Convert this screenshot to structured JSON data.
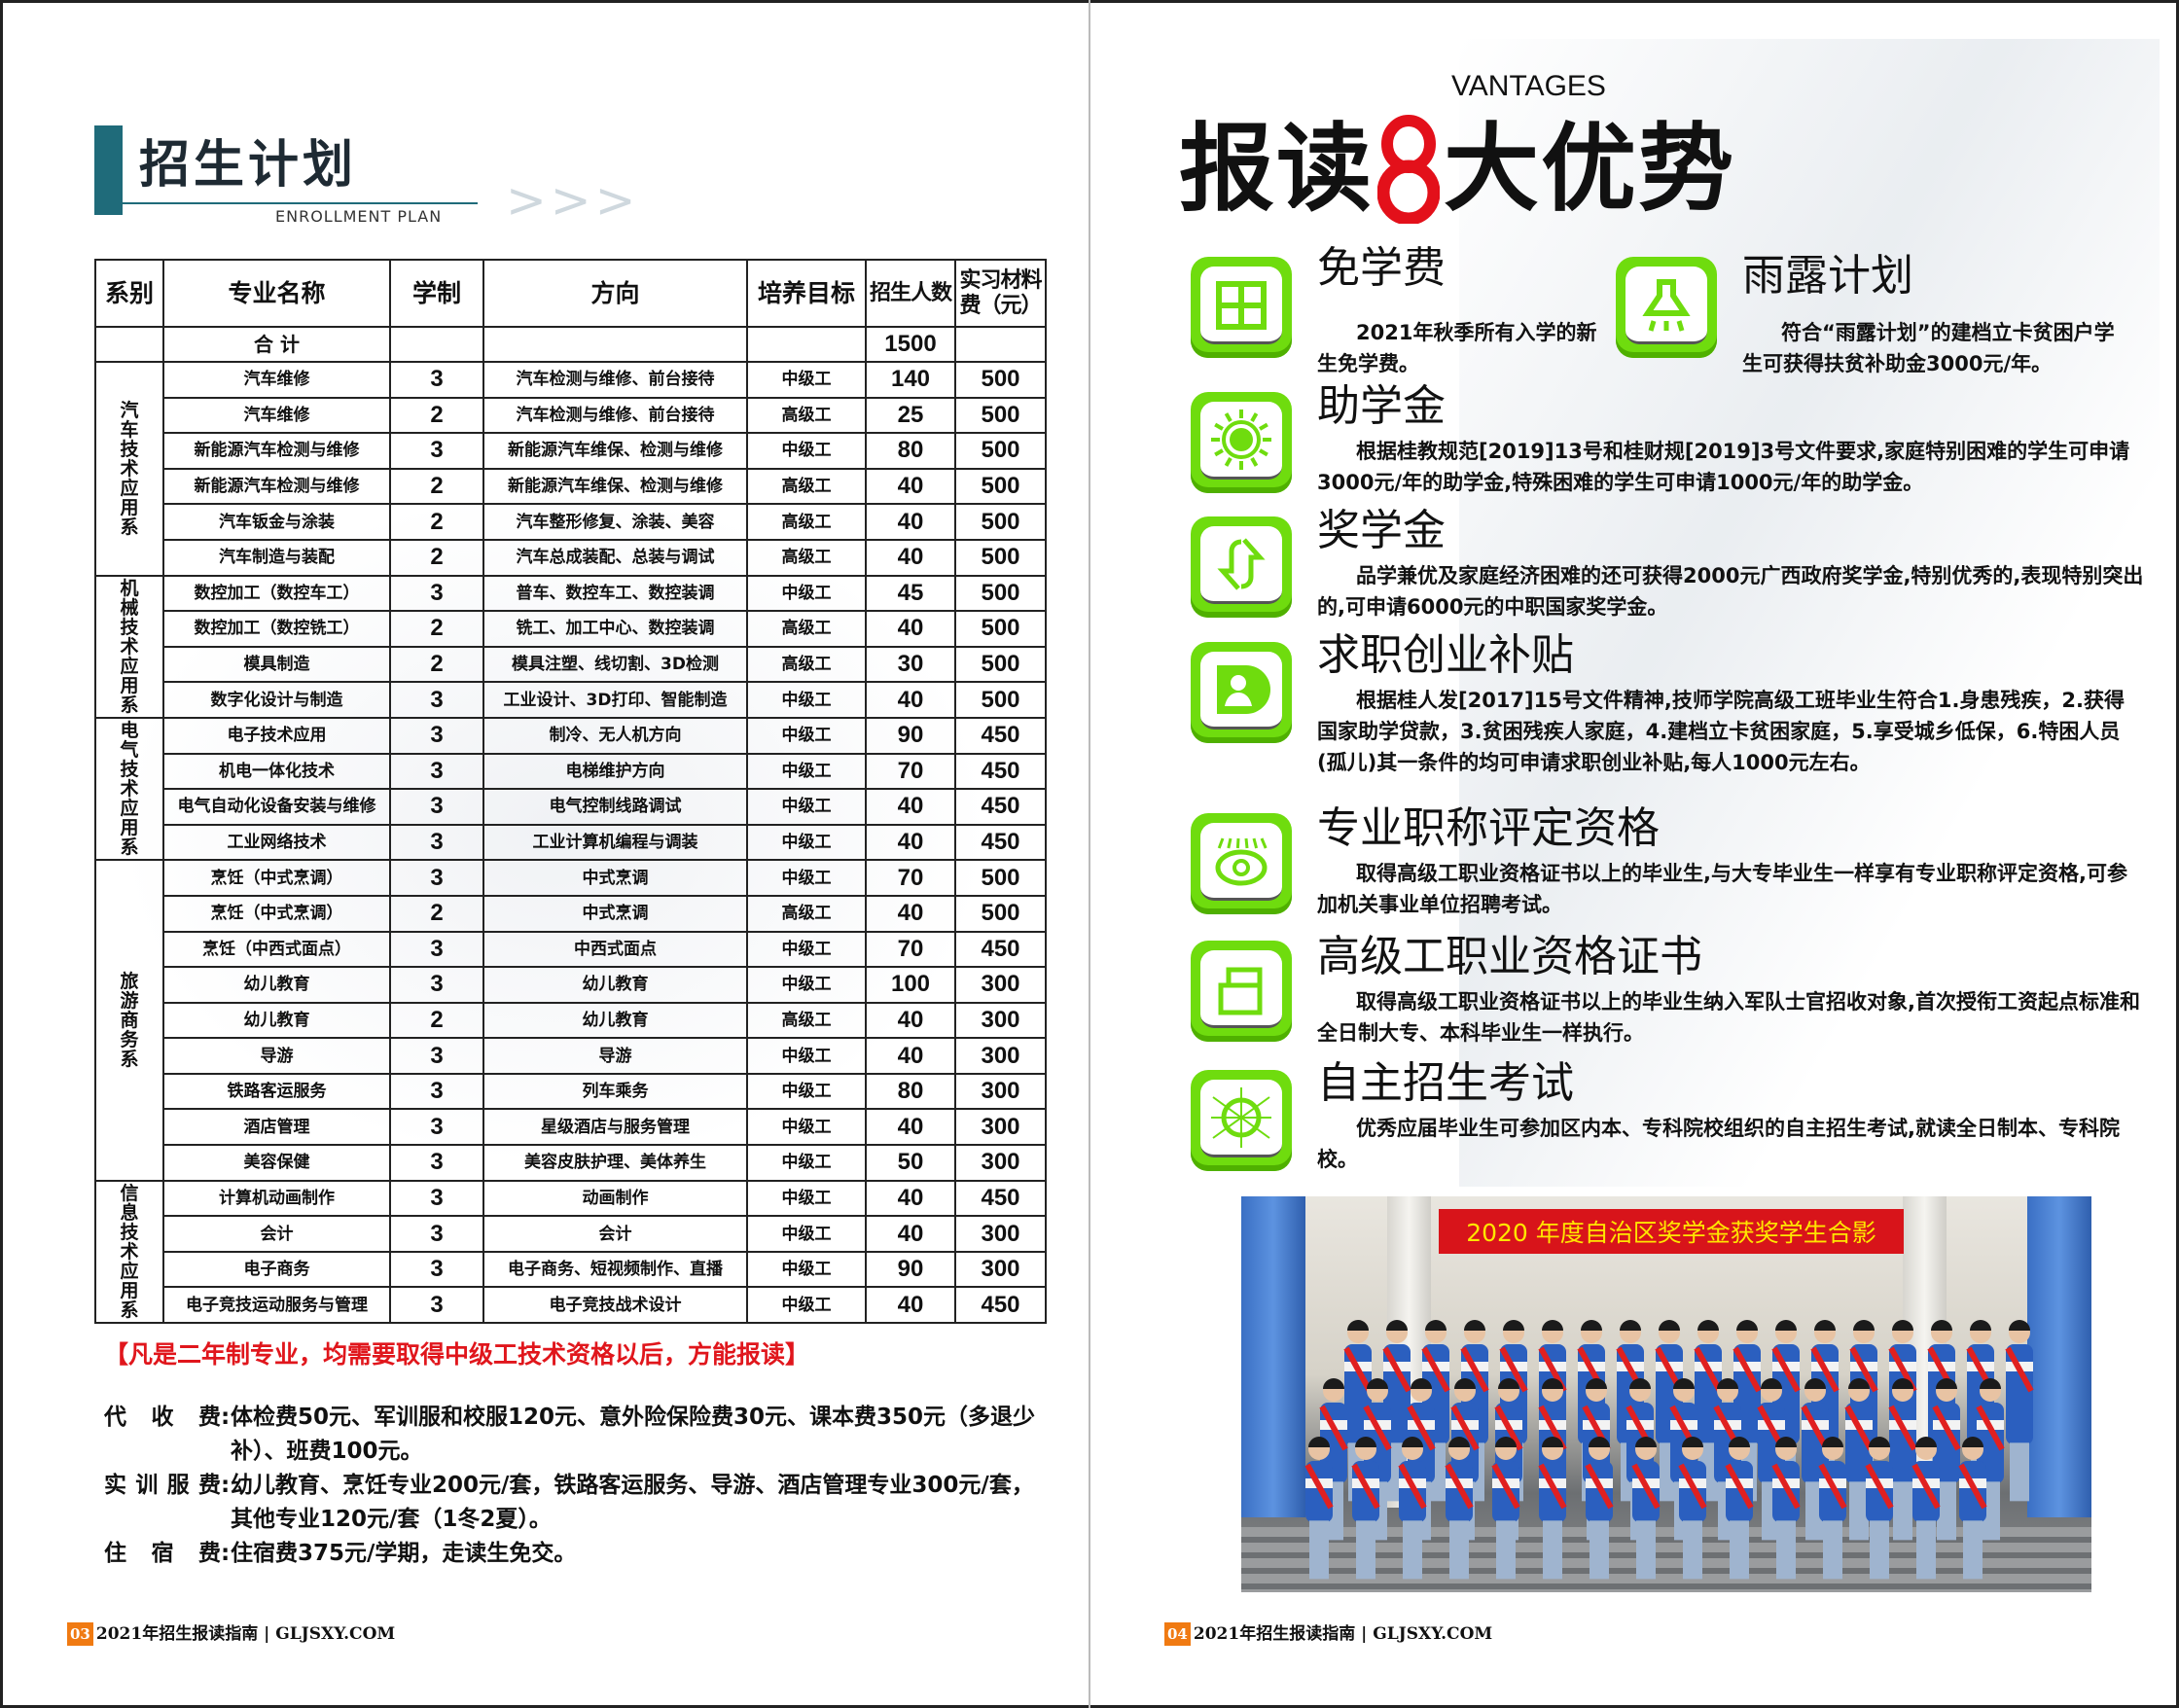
{
  "left": {
    "title": "招生计划",
    "subtitle": "ENROLLMENT PLAN",
    "arrows": "> > >",
    "table": {
      "headers": [
        "系别",
        "专业名称",
        "学制",
        "方向",
        "培养目标",
        "招生人数",
        "实习材料费（元）"
      ],
      "total": {
        "label": "合 计",
        "count": "1500"
      },
      "departments": [
        {
          "name": "汽车技术应用系",
          "rows": [
            [
              "汽车维修",
              "3",
              "汽车检测与维修、前台接待",
              "中级工",
              "140",
              "500"
            ],
            [
              "汽车维修",
              "2",
              "汽车检测与维修、前台接待",
              "高级工",
              "25",
              "500"
            ],
            [
              "新能源汽车检测与维修",
              "3",
              "新能源汽车维保、检测与维修",
              "中级工",
              "80",
              "500"
            ],
            [
              "新能源汽车检测与维修",
              "2",
              "新能源汽车维保、检测与维修",
              "高级工",
              "40",
              "500"
            ],
            [
              "汽车钣金与涂装",
              "2",
              "汽车整形修复、涂装、美容",
              "高级工",
              "40",
              "500"
            ],
            [
              "汽车制造与装配",
              "2",
              "汽车总成装配、总装与调试",
              "高级工",
              "40",
              "500"
            ]
          ]
        },
        {
          "name": "机械技术应用系",
          "rows": [
            [
              "数控加工（数控车工）",
              "3",
              "普车、数控车工、数控装调",
              "中级工",
              "45",
              "500"
            ],
            [
              "数控加工（数控铣工）",
              "2",
              "铣工、加工中心、数控装调",
              "高级工",
              "40",
              "500"
            ],
            [
              "模具制造",
              "2",
              "模具注塑、线切割、3D检测",
              "高级工",
              "30",
              "500"
            ],
            [
              "数字化设计与制造",
              "3",
              "工业设计、3D打印、智能制造",
              "中级工",
              "40",
              "500"
            ]
          ]
        },
        {
          "name": "电气技术应用系",
          "rows": [
            [
              "电子技术应用",
              "3",
              "制冷、无人机方向",
              "中级工",
              "90",
              "450"
            ],
            [
              "机电一体化技术",
              "3",
              "电梯维护方向",
              "中级工",
              "70",
              "450"
            ],
            [
              "电气自动化设备安装与维修",
              "3",
              "电气控制线路调试",
              "中级工",
              "40",
              "450"
            ],
            [
              "工业网络技术",
              "3",
              "工业计算机编程与调装",
              "中级工",
              "40",
              "450"
            ]
          ]
        },
        {
          "name": "旅游商务系",
          "rows": [
            [
              "烹饪（中式烹调）",
              "3",
              "中式烹调",
              "中级工",
              "70",
              "500"
            ],
            [
              "烹饪（中式烹调）",
              "2",
              "中式烹调",
              "高级工",
              "40",
              "500"
            ],
            [
              "烹饪（中西式面点）",
              "3",
              "中西式面点",
              "中级工",
              "70",
              "450"
            ],
            [
              "幼儿教育",
              "3",
              "幼儿教育",
              "中级工",
              "100",
              "300"
            ],
            [
              "幼儿教育",
              "2",
              "幼儿教育",
              "高级工",
              "40",
              "300"
            ],
            [
              "导游",
              "3",
              "导游",
              "中级工",
              "40",
              "300"
            ],
            [
              "铁路客运服务",
              "3",
              "列车乘务",
              "中级工",
              "80",
              "300"
            ],
            [
              "酒店管理",
              "3",
              "星级酒店与服务管理",
              "中级工",
              "40",
              "300"
            ],
            [
              "美容保健",
              "3",
              "美容皮肤护理、美体养生",
              "中级工",
              "50",
              "300"
            ]
          ]
        },
        {
          "name": "信息技术应用系",
          "rows": [
            [
              "计算机动画制作",
              "3",
              "动画制作",
              "中级工",
              "40",
              "450"
            ],
            [
              "会计",
              "3",
              "会计",
              "中级工",
              "40",
              "300"
            ],
            [
              "电子商务",
              "3",
              "电子商务、短视频制作、直播",
              "中级工",
              "90",
              "300"
            ],
            [
              "电子竞技运动服务与管理",
              "3",
              "电子竞技战术设计",
              "中级工",
              "40",
              "450"
            ]
          ]
        }
      ]
    },
    "note": "【凡是二年制专业，均需要取得中级工技术资格以后，方能报读】",
    "fees": [
      {
        "label": "代收费",
        "text": "体检费50元、军训服和校服120元、意外险保险费30元、课本费350元（多退少补）、班费100元。"
      },
      {
        "label": "实训服费",
        "text": "幼儿教育、烹饪专业200元/套，铁路客运服务、导游、酒店管理专业300元/套，其他专业120元/套（1冬2夏）。"
      },
      {
        "label": "住宿费",
        "text": "住宿费375元/学期，走读生免交。"
      }
    ],
    "footer": {
      "page": "03",
      "text": "2021年招生报读指南 | GLJSXY.COM"
    }
  },
  "right": {
    "vantages": "VANTAGES",
    "title_a": "报读",
    "title_num": "8",
    "title_b": "大优势",
    "accent": "#6fdc0e",
    "items": [
      {
        "icon": "calculator-icon",
        "title": "免学费",
        "body": "2021年秋季所有入学的新生免学费。"
      },
      {
        "icon": "lamp-icon",
        "title": "雨露计划",
        "body": "符合“雨露计划”的建档立卡贫困户学生可获得扶贫补助金3000元/年。"
      },
      {
        "icon": "sun-icon",
        "title": "助学金",
        "body": "根据桂教规范[2019]13号和桂财规[2019]3号文件要求,家庭特别困难的学生可申请3000元/年的助学金,特殊困难的学生可申请1000元/年的助学金。"
      },
      {
        "icon": "refresh-arrows-icon",
        "title": "奖学金",
        "body": "品学兼优及家庭经济困难的还可获得2000元广西政府奖学金,特别优秀的,表现特别突出的,可申请6000元的中职国家奖学金。"
      },
      {
        "icon": "user-icon",
        "title": "求职创业补贴",
        "body": "根据桂人发[2017]15号文件精神,技师学院高级工班毕业生符合1.身患残疾，2.获得国家助学贷款，3.贫困残疾人家庭，4.建档立卡贫困家庭，5.享受城乡低保，6.特困人员(孤儿)其一条件的均可申请求职创业补贴,每人1000元左右。"
      },
      {
        "icon": "eye-icon",
        "title": "专业职称评定资格",
        "body": "取得高级工职业资格证书以上的毕业生,与大专毕业生一样享有专业职称评定资格,可参加机关事业单位招聘考试。"
      },
      {
        "icon": "card-icon",
        "title": "高级工职业资格证书",
        "body": "取得高级工职业资格证书以上的毕业生纳入军队士官招收对象,首次授衔工资起点标准和全日制大专、本科毕业生一样执行。"
      },
      {
        "icon": "compass-icon",
        "title": "自主招生考试",
        "body": "优秀应届毕业生可参加区内本、专科院校组织的自主招生考试,就读全日制本、专科院校。"
      }
    ],
    "photo_banner": "2020 年度自治区奖学金获奖学生合影",
    "footer": {
      "page": "04",
      "text": "2021年招生报读指南 | GLJSXY.COM"
    }
  }
}
